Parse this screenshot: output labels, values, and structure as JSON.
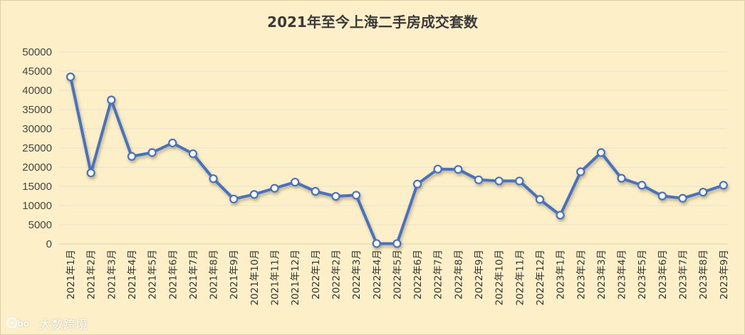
{
  "colors": {
    "background": "#fdf0c8",
    "line": "#4472c4",
    "marker_fill": "#ffffff",
    "gridline": "#e6e0d0"
  },
  "chart_data": {
    "type": "line",
    "title": "2021年至今上海二手房成交套数",
    "xlabel": "",
    "ylabel": "",
    "ylim": [
      0,
      50000
    ],
    "yticks": [
      0,
      5000,
      10000,
      15000,
      20000,
      25000,
      30000,
      35000,
      40000,
      45000,
      50000
    ],
    "grid": true,
    "legend": "none",
    "categories": [
      "2021年1月",
      "2021年2月",
      "2021年3月",
      "2021年4月",
      "2021年5月",
      "2021年6月",
      "2021年7月",
      "2021年8月",
      "2021年9月",
      "2021年10月",
      "2021年11月",
      "2021年12月",
      "2022年1月",
      "2022年2月",
      "2022年3月",
      "2022年4月",
      "2022年5月",
      "2022年6月",
      "2022年7月",
      "2022年8月",
      "2022年9月",
      "2022年10月",
      "2022年11月",
      "2022年12月",
      "2023年1月",
      "2023年2月",
      "2023年3月",
      "2023年4月",
      "2023年5月",
      "2023年6月",
      "2023年7月",
      "2023年8月",
      "2023年9月"
    ],
    "series": [
      {
        "values": [
          43500,
          18500,
          37500,
          22800,
          23800,
          26300,
          23500,
          17000,
          11700,
          12900,
          14500,
          16100,
          13700,
          12400,
          12700,
          100,
          100,
          15600,
          19500,
          19400,
          16700,
          16400,
          16400,
          11600,
          7500,
          18800,
          23800,
          17100,
          15300,
          12500,
          11900,
          13500,
          15300
        ]
      }
    ]
  },
  "watermark": {
    "icon": "bigdata-logo-icon",
    "text": "大数跨境"
  }
}
